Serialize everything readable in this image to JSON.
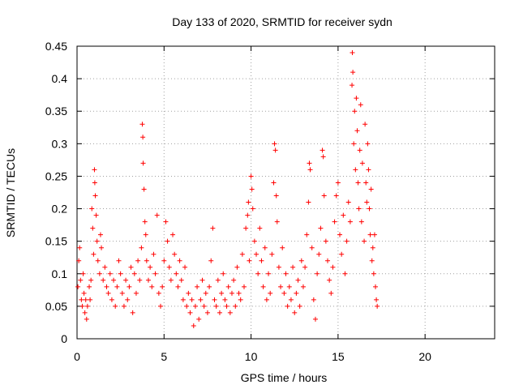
{
  "chart_data": {
    "type": "scatter",
    "title": "Day 133 of 2020, SRMTID for receiver sydn",
    "xlabel": "GPS time / hours",
    "ylabel": "SRMTID / TECUs",
    "xlim": [
      0,
      24
    ],
    "ylim": [
      0,
      0.45
    ],
    "xticks": [
      0,
      5,
      10,
      15,
      20
    ],
    "yticks": [
      0,
      0.05,
      0.1,
      0.15,
      0.2,
      0.25,
      0.3,
      0.35,
      0.4,
      0.45
    ],
    "xtick_labels": [
      "0",
      "5",
      "10",
      "15",
      "20"
    ],
    "ytick_labels": [
      "0",
      "0.05",
      "0.1",
      "0.15",
      "0.2",
      "0.25",
      "0.3",
      "0.35",
      "0.4",
      "0.45"
    ],
    "grid": true,
    "marker": "+",
    "color": "#ff0000",
    "series": [
      {
        "name": "SRMTID",
        "points": [
          [
            0.05,
            0.08
          ],
          [
            0.1,
            0.12
          ],
          [
            0.15,
            0.14
          ],
          [
            0.2,
            0.09
          ],
          [
            0.25,
            0.06
          ],
          [
            0.3,
            0.05
          ],
          [
            0.35,
            0.1
          ],
          [
            0.4,
            0.07
          ],
          [
            0.45,
            0.04
          ],
          [
            0.5,
            0.06
          ],
          [
            0.55,
            0.03
          ],
          [
            0.6,
            0.05
          ],
          [
            0.7,
            0.08
          ],
          [
            0.75,
            0.06
          ],
          [
            0.8,
            0.09
          ],
          [
            0.85,
            0.2
          ],
          [
            0.9,
            0.17
          ],
          [
            0.95,
            0.13
          ],
          [
            1.0,
            0.26
          ],
          [
            1.02,
            0.24
          ],
          [
            1.05,
            0.22
          ],
          [
            1.1,
            0.19
          ],
          [
            1.15,
            0.15
          ],
          [
            1.2,
            0.12
          ],
          [
            1.3,
            0.1
          ],
          [
            1.35,
            0.16
          ],
          [
            1.4,
            0.14
          ],
          [
            1.5,
            0.09
          ],
          [
            1.6,
            0.11
          ],
          [
            1.7,
            0.08
          ],
          [
            1.8,
            0.07
          ],
          [
            1.9,
            0.1
          ],
          [
            2.0,
            0.06
          ],
          [
            2.1,
            0.09
          ],
          [
            2.2,
            0.05
          ],
          [
            2.3,
            0.08
          ],
          [
            2.4,
            0.12
          ],
          [
            2.5,
            0.1
          ],
          [
            2.6,
            0.07
          ],
          [
            2.7,
            0.05
          ],
          [
            2.8,
            0.09
          ],
          [
            2.9,
            0.06
          ],
          [
            3.0,
            0.08
          ],
          [
            3.1,
            0.11
          ],
          [
            3.2,
            0.04
          ],
          [
            3.3,
            0.1
          ],
          [
            3.4,
            0.07
          ],
          [
            3.5,
            0.12
          ],
          [
            3.6,
            0.09
          ],
          [
            3.7,
            0.14
          ],
          [
            3.75,
            0.33
          ],
          [
            3.78,
            0.31
          ],
          [
            3.8,
            0.27
          ],
          [
            3.85,
            0.23
          ],
          [
            3.9,
            0.18
          ],
          [
            3.95,
            0.16
          ],
          [
            4.0,
            0.12
          ],
          [
            4.1,
            0.09
          ],
          [
            4.2,
            0.11
          ],
          [
            4.3,
            0.08
          ],
          [
            4.4,
            0.13
          ],
          [
            4.5,
            0.1
          ],
          [
            4.6,
            0.19
          ],
          [
            4.7,
            0.07
          ],
          [
            4.8,
            0.05
          ],
          [
            4.9,
            0.08
          ],
          [
            5.0,
            0.12
          ],
          [
            5.1,
            0.18
          ],
          [
            5.2,
            0.15
          ],
          [
            5.3,
            0.11
          ],
          [
            5.4,
            0.09
          ],
          [
            5.5,
            0.16
          ],
          [
            5.6,
            0.13
          ],
          [
            5.7,
            0.1
          ],
          [
            5.8,
            0.08
          ],
          [
            5.9,
            0.12
          ],
          [
            6.0,
            0.09
          ],
          [
            6.1,
            0.06
          ],
          [
            6.2,
            0.11
          ],
          [
            6.3,
            0.05
          ],
          [
            6.4,
            0.07
          ],
          [
            6.5,
            0.04
          ],
          [
            6.6,
            0.06
          ],
          [
            6.7,
            0.02
          ],
          [
            6.8,
            0.05
          ],
          [
            6.9,
            0.08
          ],
          [
            7.0,
            0.03
          ],
          [
            7.1,
            0.06
          ],
          [
            7.2,
            0.09
          ],
          [
            7.3,
            0.05
          ],
          [
            7.4,
            0.07
          ],
          [
            7.5,
            0.04
          ],
          [
            7.6,
            0.08
          ],
          [
            7.7,
            0.12
          ],
          [
            7.8,
            0.17
          ],
          [
            7.9,
            0.06
          ],
          [
            8.0,
            0.05
          ],
          [
            8.1,
            0.09
          ],
          [
            8.2,
            0.04
          ],
          [
            8.3,
            0.07
          ],
          [
            8.4,
            0.1
          ],
          [
            8.5,
            0.06
          ],
          [
            8.6,
            0.05
          ],
          [
            8.7,
            0.08
          ],
          [
            8.8,
            0.04
          ],
          [
            8.9,
            0.07
          ],
          [
            9.0,
            0.09
          ],
          [
            9.1,
            0.05
          ],
          [
            9.2,
            0.11
          ],
          [
            9.3,
            0.07
          ],
          [
            9.4,
            0.06
          ],
          [
            9.5,
            0.13
          ],
          [
            9.6,
            0.08
          ],
          [
            9.7,
            0.17
          ],
          [
            9.8,
            0.19
          ],
          [
            9.85,
            0.21
          ],
          [
            9.9,
            0.12
          ],
          [
            10.0,
            0.25
          ],
          [
            10.05,
            0.23
          ],
          [
            10.1,
            0.2
          ],
          [
            10.2,
            0.15
          ],
          [
            10.3,
            0.13
          ],
          [
            10.4,
            0.1
          ],
          [
            10.5,
            0.17
          ],
          [
            10.6,
            0.12
          ],
          [
            10.7,
            0.08
          ],
          [
            10.8,
            0.14
          ],
          [
            10.9,
            0.06
          ],
          [
            11.0,
            0.1
          ],
          [
            11.1,
            0.07
          ],
          [
            11.2,
            0.13
          ],
          [
            11.3,
            0.24
          ],
          [
            11.35,
            0.3
          ],
          [
            11.4,
            0.29
          ],
          [
            11.45,
            0.22
          ],
          [
            11.5,
            0.18
          ],
          [
            11.6,
            0.11
          ],
          [
            11.7,
            0.08
          ],
          [
            11.8,
            0.14
          ],
          [
            11.9,
            0.07
          ],
          [
            12.0,
            0.1
          ],
          [
            12.1,
            0.05
          ],
          [
            12.2,
            0.08
          ],
          [
            12.3,
            0.06
          ],
          [
            12.4,
            0.11
          ],
          [
            12.5,
            0.04
          ],
          [
            12.6,
            0.07
          ],
          [
            12.7,
            0.09
          ],
          [
            12.8,
            0.05
          ],
          [
            12.9,
            0.12
          ],
          [
            13.0,
            0.08
          ],
          [
            13.1,
            0.11
          ],
          [
            13.2,
            0.16
          ],
          [
            13.3,
            0.21
          ],
          [
            13.35,
            0.27
          ],
          [
            13.4,
            0.26
          ],
          [
            13.5,
            0.14
          ],
          [
            13.6,
            0.06
          ],
          [
            13.7,
            0.03
          ],
          [
            13.8,
            0.1
          ],
          [
            13.9,
            0.13
          ],
          [
            14.0,
            0.17
          ],
          [
            14.1,
            0.29
          ],
          [
            14.15,
            0.28
          ],
          [
            14.2,
            0.22
          ],
          [
            14.3,
            0.15
          ],
          [
            14.4,
            0.12
          ],
          [
            14.5,
            0.09
          ],
          [
            14.6,
            0.07
          ],
          [
            14.7,
            0.11
          ],
          [
            14.8,
            0.18
          ],
          [
            14.9,
            0.22
          ],
          [
            15.0,
            0.24
          ],
          [
            15.1,
            0.16
          ],
          [
            15.2,
            0.13
          ],
          [
            15.3,
            0.19
          ],
          [
            15.4,
            0.1
          ],
          [
            15.5,
            0.15
          ],
          [
            15.6,
            0.21
          ],
          [
            15.7,
            0.18
          ],
          [
            15.8,
            0.39
          ],
          [
            15.82,
            0.44
          ],
          [
            15.85,
            0.41
          ],
          [
            15.9,
            0.3
          ],
          [
            15.95,
            0.35
          ],
          [
            16.0,
            0.26
          ],
          [
            16.05,
            0.37
          ],
          [
            16.1,
            0.32
          ],
          [
            16.15,
            0.24
          ],
          [
            16.2,
            0.2
          ],
          [
            16.25,
            0.29
          ],
          [
            16.3,
            0.36
          ],
          [
            16.35,
            0.18
          ],
          [
            16.4,
            0.27
          ],
          [
            16.5,
            0.15
          ],
          [
            16.55,
            0.33
          ],
          [
            16.6,
            0.24
          ],
          [
            16.65,
            0.21
          ],
          [
            16.7,
            0.3
          ],
          [
            16.75,
            0.26
          ],
          [
            16.8,
            0.2
          ],
          [
            16.85,
            0.16
          ],
          [
            16.9,
            0.23
          ],
          [
            16.95,
            0.12
          ],
          [
            17.0,
            0.14
          ],
          [
            17.05,
            0.1
          ],
          [
            17.1,
            0.16
          ],
          [
            17.15,
            0.08
          ],
          [
            17.2,
            0.06
          ],
          [
            17.25,
            0.05
          ]
        ]
      }
    ]
  }
}
